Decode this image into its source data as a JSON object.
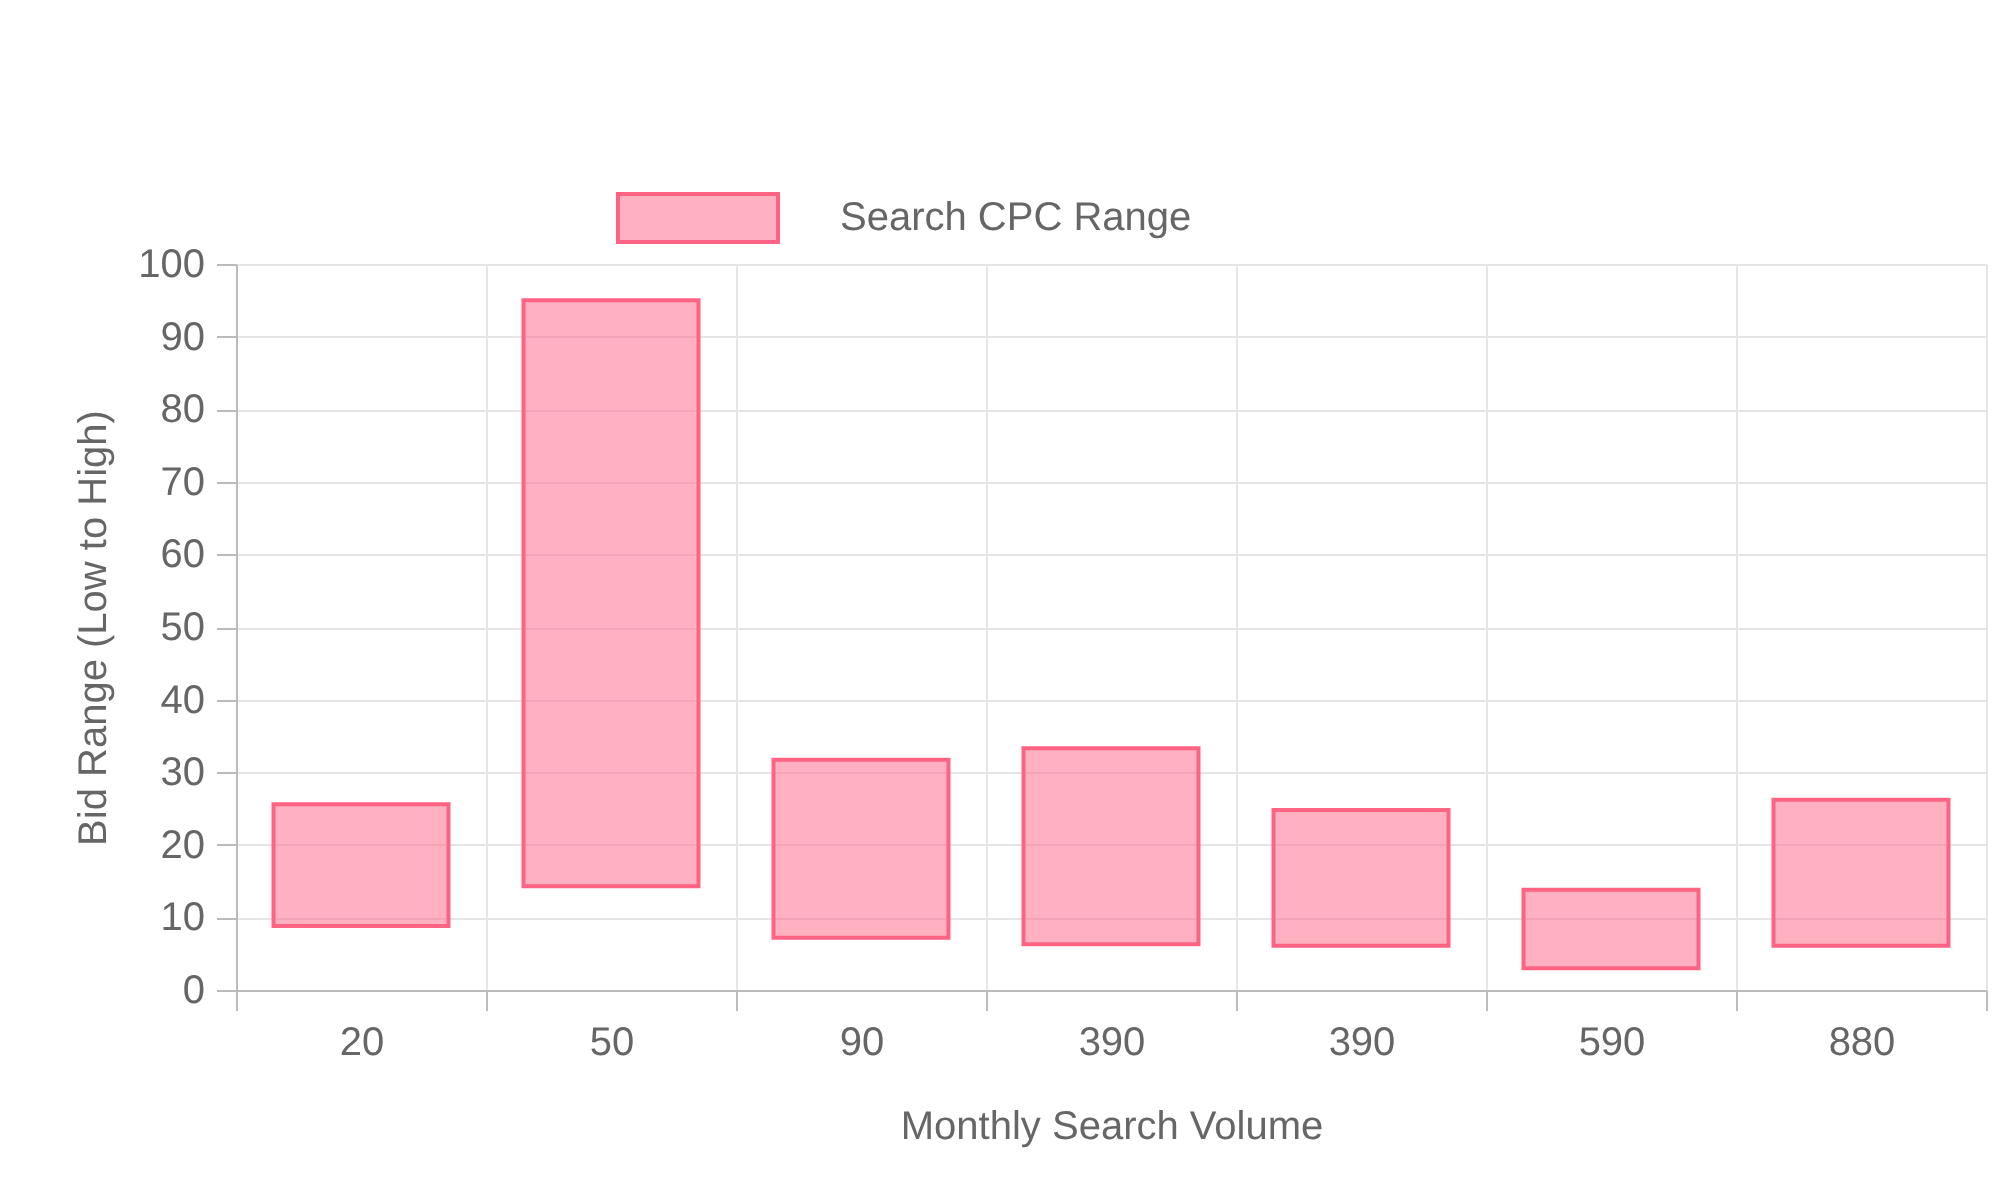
{
  "chart_data": {
    "type": "bar",
    "xlabel": "Monthly Search Volume",
    "ylabel": "Bid Range (Low to High)",
    "categories": [
      "20",
      "50",
      "90",
      "390",
      "390",
      "590",
      "880"
    ],
    "series": [
      {
        "name": "Search CPC Range",
        "color": "#ff6384",
        "values": [
          16.8,
          80.7,
          24.5,
          27.0,
          18.7,
          10.8,
          20.1
        ],
        "base": [
          8.8,
          14.3,
          7.2,
          6.3,
          6.1,
          3.0,
          6.1
        ]
      }
    ],
    "ylim": [
      0,
      100
    ],
    "yticks": [
      0,
      10,
      20,
      30,
      40,
      50,
      60,
      70,
      80,
      90,
      100
    ],
    "grid": true,
    "legend": "top"
  }
}
